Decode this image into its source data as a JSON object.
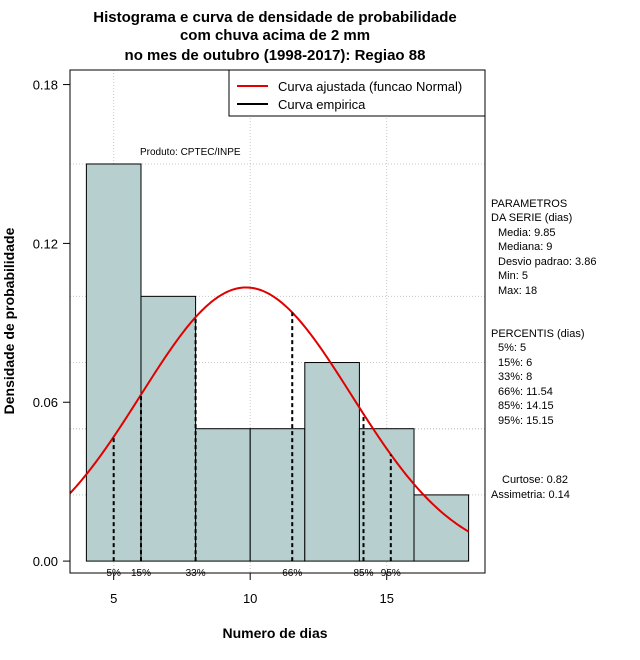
{
  "chart_data": {
    "type": "bar",
    "title_lines": [
      "Histograma e curva de densidade de probabilidade",
      "com chuva acima de 2 mm",
      "no mes de outubro (1998-2017): Regiao 88"
    ],
    "xlabel": "Numero de dias",
    "ylabel": "Densidade de probabilidade",
    "xlim": [
      3.4,
      18.6
    ],
    "ylim": [
      -0.0045,
      0.1855
    ],
    "x_ticks": [
      5,
      10,
      15
    ],
    "y_ticks": [
      0.0,
      0.06,
      0.12,
      0.18
    ],
    "y_tick_labels": [
      "0.00",
      "0.06",
      "0.12",
      "0.18"
    ],
    "bins": [
      {
        "start": 4,
        "end": 6,
        "density": 0.15
      },
      {
        "start": 6,
        "end": 8,
        "density": 0.1
      },
      {
        "start": 8,
        "end": 10,
        "density": 0.05
      },
      {
        "start": 10,
        "end": 12,
        "density": 0.05
      },
      {
        "start": 12,
        "end": 14,
        "density": 0.075
      },
      {
        "start": 14,
        "end": 16,
        "density": 0.05
      },
      {
        "start": 16,
        "end": 18,
        "density": 0.025
      }
    ],
    "fitted_curve": {
      "type": "normal",
      "mean": 9.85,
      "sd": 3.86,
      "color": "#e00000"
    },
    "percentile_lines": [
      {
        "label": "5%",
        "x": 5
      },
      {
        "label": "15%",
        "x": 6
      },
      {
        "label": "33%",
        "x": 8
      },
      {
        "label": "66%",
        "x": 11.54
      },
      {
        "label": "85%",
        "x": 14.15
      },
      {
        "label": "95%",
        "x": 15.15
      }
    ],
    "legend": [
      {
        "label": "Curva ajustada (funcao Normal)",
        "color": "#e00000"
      },
      {
        "label": "Curva empirica",
        "color": "#000000"
      }
    ],
    "legend_position": "top-right",
    "annotation": "Produto: CPTEC/INPE",
    "bar_color": "#b7cfce",
    "grid": true
  },
  "side_panel": {
    "params_title": [
      "PARAMETROS",
      "DA SERIE (dias)"
    ],
    "params": [
      "Media: 9.85",
      "Mediana: 9",
      "Desvio padrao: 3.86",
      "Min: 5",
      "Max: 18"
    ],
    "percentis_title": "PERCENTIS (dias)",
    "percentis": [
      "5%: 5",
      "15%: 6",
      "33%: 8",
      "66%: 11.54",
      "85%: 14.15",
      "95%: 15.15"
    ],
    "curtose": "Curtose: 0.82",
    "assimetria": "Assimetria: 0.14"
  }
}
